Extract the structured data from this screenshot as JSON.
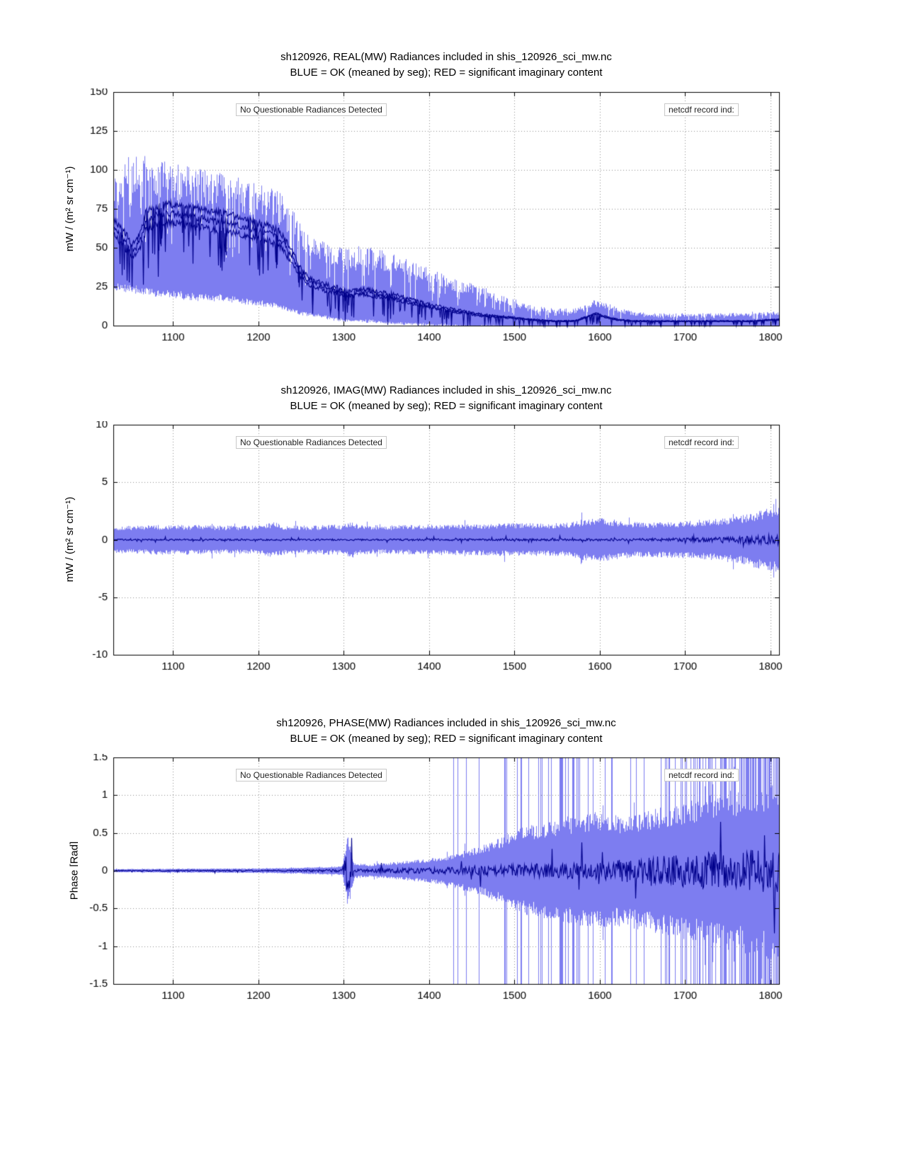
{
  "chart_data": [
    {
      "type": "area",
      "title": "sh120926, REAL(MW) Radiances included in shis_120926_sci_mw.nc",
      "subtitle": "BLUE = OK (meaned by seg); RED = significant imaginary content",
      "note_left": "No Questionable Radiances Detected",
      "note_right": "netcdf record ind:",
      "ylabel": "mW / (m² sr cm⁻¹)",
      "xlabel": "",
      "xlim": [
        1030,
        1810
      ],
      "ylim": [
        0,
        150
      ],
      "xticks": [
        1100,
        1200,
        1300,
        1400,
        1500,
        1600,
        1700,
        1800
      ],
      "yticks": [
        0,
        25,
        50,
        75,
        100,
        125,
        150
      ],
      "grid": true,
      "legend": "none",
      "colors": {
        "band": "#7d7df0",
        "line": "#00008b"
      },
      "series": {
        "kind": "asym-band",
        "x": [
          1030,
          1042,
          1052,
          1060,
          1068,
          1080,
          1095,
          1110,
          1130,
          1150,
          1170,
          1190,
          1210,
          1225,
          1240,
          1252,
          1262,
          1275,
          1290,
          1305,
          1320,
          1340,
          1360,
          1380,
          1400,
          1420,
          1440,
          1460,
          1480,
          1500,
          1520,
          1545,
          1570,
          1585,
          1595,
          1605,
          1620,
          1640,
          1660,
          1690,
          1720,
          1750,
          1780,
          1800,
          1810
        ],
        "upper": [
          96,
          104,
          112,
          106,
          110,
          107,
          105,
          103,
          101,
          99,
          96,
          93,
          91,
          88,
          75,
          62,
          58,
          55,
          52,
          49,
          52,
          50,
          46,
          41,
          37,
          32,
          29,
          26,
          21,
          17,
          13,
          11,
          11,
          15,
          17,
          15,
          12,
          9,
          8,
          8,
          8,
          8,
          9,
          9,
          9
        ],
        "lower": [
          30,
          29,
          27,
          26,
          26,
          25,
          24,
          23,
          22,
          21,
          20,
          19,
          17,
          15,
          12,
          10,
          9,
          8,
          6,
          5,
          5,
          4,
          3,
          3,
          2,
          2,
          1,
          1,
          1,
          0,
          0,
          0,
          0,
          0,
          0,
          0,
          0,
          0,
          0,
          0,
          0,
          0,
          0,
          0,
          0
        ],
        "mean": [
          66,
          58,
          50,
          55,
          70,
          74,
          75,
          74,
          72,
          70,
          68,
          65,
          62,
          58,
          45,
          33,
          29,
          26,
          24,
          21,
          23,
          21,
          19,
          16,
          13,
          11,
          9,
          7,
          6,
          5,
          4,
          3,
          3,
          6,
          8,
          6,
          4,
          3,
          3,
          3,
          3,
          3,
          3,
          4,
          4
        ],
        "mean_offsets": [
          1.04,
          0.96,
          0.88
        ]
      }
    },
    {
      "type": "area",
      "title": "sh120926, IMAG(MW) Radiances included in shis_120926_sci_mw.nc",
      "subtitle": "BLUE = OK (meaned by seg); RED = significant imaginary content",
      "note_left": "No Questionable Radiances Detected",
      "note_right": "netcdf record ind:",
      "ylabel": "mW / (m² sr cm⁻¹)",
      "xlabel": "",
      "xlim": [
        1030,
        1810
      ],
      "ylim": [
        -10,
        10
      ],
      "xticks": [
        1100,
        1200,
        1300,
        1400,
        1500,
        1600,
        1700,
        1800
      ],
      "yticks": [
        -10,
        -5,
        0,
        5,
        10
      ],
      "grid": true,
      "legend": "none",
      "colors": {
        "band": "#7d7df0",
        "line": "#00008b"
      },
      "series": {
        "kind": "sym-band",
        "x": [
          1030,
          1060,
          1100,
          1150,
          1200,
          1218,
          1228,
          1240,
          1270,
          1300,
          1308,
          1318,
          1340,
          1380,
          1420,
          1460,
          1500,
          1530,
          1560,
          1580,
          1600,
          1615,
          1635,
          1660,
          1690,
          1715,
          1740,
          1765,
          1790,
          1810
        ],
        "amp": [
          1.1,
          1.2,
          1.25,
          1.2,
          1.18,
          1.5,
          1.25,
          1.2,
          1.2,
          1.3,
          1.55,
          1.25,
          1.2,
          1.22,
          1.28,
          1.3,
          1.4,
          1.35,
          1.4,
          1.7,
          1.85,
          1.7,
          1.5,
          1.45,
          1.5,
          1.6,
          1.75,
          2.0,
          2.5,
          2.75
        ],
        "spike_density_x": [
          1030,
          1810
        ],
        "spike_density": [
          0,
          0
        ],
        "mean_noise_x": [
          1030,
          1300,
          1400,
          1500,
          1600,
          1650,
          1700,
          1740,
          1770,
          1800,
          1810
        ],
        "mean_noise": [
          0.07,
          0.075,
          0.08,
          0.09,
          0.1,
          0.12,
          0.16,
          0.22,
          0.3,
          0.45,
          0.5
        ]
      }
    },
    {
      "type": "area",
      "title": "sh120926, PHASE(MW) Radiances included in shis_120926_sci_mw.nc",
      "subtitle": "BLUE = OK (meaned by seg); RED = significant imaginary content",
      "note_left": "No Questionable Radiances Detected",
      "note_right": "netcdf record ind:",
      "ylabel": "Phase [Rad]",
      "xlabel": "",
      "xlim": [
        1030,
        1810
      ],
      "ylim": [
        -1.5,
        1.5
      ],
      "xticks": [
        1100,
        1200,
        1300,
        1400,
        1500,
        1600,
        1700,
        1800
      ],
      "yticks": [
        -1.5,
        -1,
        -0.5,
        0,
        0.5,
        1,
        1.5
      ],
      "grid": true,
      "legend": "none",
      "colors": {
        "band": "#7d7df0",
        "line": "#00008b"
      },
      "series": {
        "kind": "sym-band",
        "x": [
          1030,
          1100,
          1200,
          1250,
          1280,
          1298,
          1304,
          1312,
          1330,
          1350,
          1380,
          1410,
          1430,
          1450,
          1470,
          1490,
          1510,
          1530,
          1560,
          1590,
          1620,
          1650,
          1680,
          1710,
          1740,
          1770,
          1800,
          1810
        ],
        "amp": [
          0.02,
          0.025,
          0.03,
          0.04,
          0.05,
          0.06,
          0.45,
          0.1,
          0.08,
          0.1,
          0.13,
          0.17,
          0.22,
          0.28,
          0.35,
          0.45,
          0.55,
          0.6,
          0.68,
          0.75,
          0.7,
          0.75,
          0.82,
          0.9,
          0.98,
          1.05,
          1.12,
          1.15
        ],
        "spike_density_x": [
          1030,
          1415,
          1432,
          1440,
          1455,
          1468,
          1478,
          1495,
          1515,
          1540,
          1565,
          1595,
          1615,
          1640,
          1665,
          1695,
          1725,
          1755,
          1785,
          1810
        ],
        "spike_density": [
          0,
          0,
          0.05,
          0,
          0.03,
          0.05,
          0.02,
          0.15,
          0.22,
          0.28,
          0.3,
          0.22,
          0.1,
          0.16,
          0.2,
          0.28,
          0.36,
          0.48,
          0.6,
          0.68
        ],
        "mean_noise_x": [
          1030,
          1250,
          1290,
          1298,
          1304,
          1312,
          1330,
          1400,
          1450,
          1500,
          1550,
          1600,
          1650,
          1700,
          1750,
          1810
        ],
        "mean_noise": [
          0.008,
          0.012,
          0.02,
          0.02,
          0.32,
          0.02,
          0.025,
          0.04,
          0.055,
          0.08,
          0.1,
          0.13,
          0.17,
          0.22,
          0.26,
          0.3
        ]
      }
    }
  ]
}
